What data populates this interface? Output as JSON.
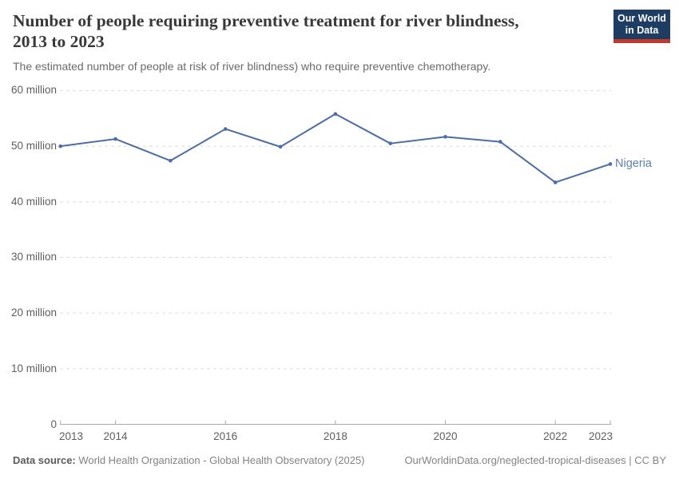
{
  "header": {
    "title_line1": "Number of people requiring preventive treatment for river blindness,",
    "title_line2": "2013 to 2023",
    "subtitle": "The estimated number of people at risk of river blindness) who require preventive chemotherapy.",
    "logo": {
      "line1": "Our World",
      "line2": "in Data",
      "bg_color": "#1d3d63",
      "accent_color": "#c0392b"
    }
  },
  "chart_data": {
    "type": "line",
    "title": "Number of people requiring preventive treatment for river blindness, 2013 to 2023",
    "xlabel": "",
    "ylabel": "",
    "unit": "million people",
    "x": [
      2013,
      2014,
      2015,
      2016,
      2017,
      2018,
      2019,
      2020,
      2021,
      2022,
      2023
    ],
    "series": [
      {
        "name": "Nigeria",
        "color": "#4c6da5",
        "label_color": "#5d80b4",
        "values_millions": [
          50.0,
          51.3,
          47.4,
          53.1,
          49.9,
          55.8,
          50.5,
          51.7,
          50.8,
          43.5,
          46.8
        ]
      }
    ],
    "ylim_millions": [
      0,
      60
    ],
    "yticks": [
      {
        "value": 0,
        "label": "0"
      },
      {
        "value": 10,
        "label": "10 million"
      },
      {
        "value": 20,
        "label": "20 million"
      },
      {
        "value": 30,
        "label": "30 million"
      },
      {
        "value": 40,
        "label": "40 million"
      },
      {
        "value": 50,
        "label": "50 million"
      },
      {
        "value": 60,
        "label": "60 million"
      }
    ],
    "xticks": [
      {
        "value": 2013,
        "label": "2013"
      },
      {
        "value": 2014,
        "label": "2014"
      },
      {
        "value": 2016,
        "label": "2016"
      },
      {
        "value": 2018,
        "label": "2018"
      },
      {
        "value": 2020,
        "label": "2020"
      },
      {
        "value": 2022,
        "label": "2022"
      },
      {
        "value": 2023,
        "label": "2023"
      }
    ],
    "grid": {
      "horizontal": true,
      "vertical": false,
      "style": "dashed",
      "color": "#dcdcdc"
    },
    "axis_color": "#a9a9a9",
    "legend_position": "end-of-line-label"
  },
  "footer": {
    "source_label": "Data source:",
    "source_text": " World Health Organization - Global Health Observatory (2025)",
    "link_text": "OurWorldinData.org/neglected-tropical-diseases | CC BY"
  }
}
